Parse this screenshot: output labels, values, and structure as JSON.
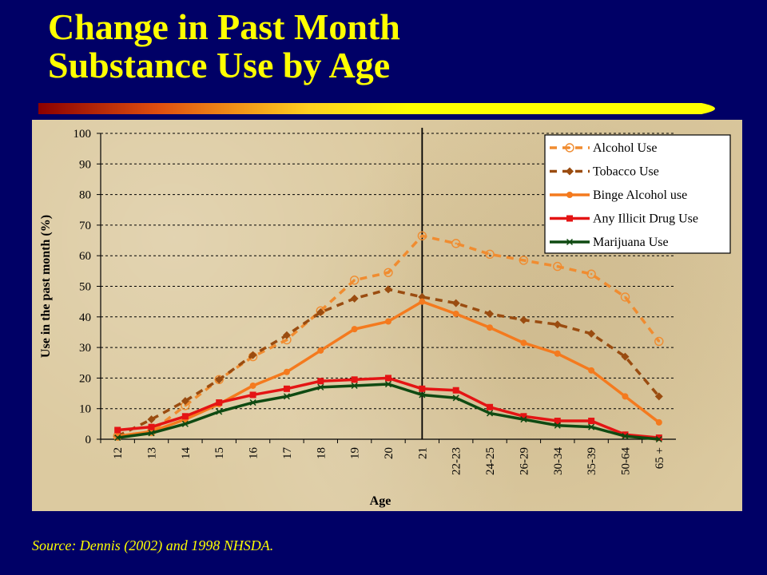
{
  "slide": {
    "title_line1": "Change in Past Month",
    "title_line2": "Substance Use by Age",
    "source": "Source: Dennis (2002) and 1998 NHSDA."
  },
  "colors": {
    "background": "#000066",
    "title": "#ffff00",
    "alcohol": "#f08c30",
    "tobacco": "#9a4c10",
    "binge": "#f47a1e",
    "illicit": "#e41414",
    "marijuana": "#0f4a12"
  },
  "chart_data": {
    "type": "line",
    "title": "",
    "xlabel": "Age",
    "ylabel": "Use in the past month (%)",
    "ylim": [
      0,
      100
    ],
    "yticks": [
      "0",
      "10",
      "20",
      "30",
      "40",
      "50",
      "60",
      "70",
      "80",
      "90",
      "100"
    ],
    "grid": "horizontal dashed",
    "legend_position": "top-right",
    "reference_line_category": "21",
    "categories": [
      "12",
      "13",
      "14",
      "15",
      "16",
      "17",
      "18",
      "19",
      "20",
      "21",
      "22-23",
      "24-25",
      "26-29",
      "30-34",
      "35-39",
      "50-64",
      "65 +"
    ],
    "series": [
      {
        "name": "Alcohol Use",
        "style": "dashed",
        "marker": "circle-open",
        "color_key": "alcohol",
        "values": [
          1,
          2.5,
          11,
          19.5,
          27,
          32.5,
          42,
          52,
          54.5,
          66.5,
          64,
          60.5,
          58.5,
          56.5,
          54,
          46.5,
          32
        ]
      },
      {
        "name": "Tobacco Use",
        "style": "dashed",
        "marker": "diamond",
        "color_key": "tobacco",
        "values": [
          1,
          6.5,
          12.5,
          19.5,
          27.5,
          34,
          41.5,
          46,
          49,
          46.5,
          44.5,
          41,
          39,
          37.5,
          34.5,
          27,
          14
        ]
      },
      {
        "name": "Binge Alcohol use",
        "style": "solid",
        "marker": "circle",
        "color_key": "binge",
        "values": [
          1,
          2.5,
          6.5,
          11.5,
          17.5,
          22,
          29,
          36,
          38.5,
          45,
          41,
          36.5,
          31.5,
          28,
          22.5,
          14,
          5.5
        ]
      },
      {
        "name": "Any Illicit Drug Use",
        "style": "solid",
        "marker": "square",
        "color_key": "illicit",
        "values": [
          3,
          4,
          7.5,
          12,
          14.5,
          16.5,
          19,
          19.5,
          20,
          16.5,
          16,
          10.5,
          7.5,
          6,
          6,
          1.5,
          0.5
        ]
      },
      {
        "name": "Marijuana Use",
        "style": "solid",
        "marker": "x",
        "color_key": "marijuana",
        "values": [
          0.5,
          2,
          5,
          9,
          12,
          14,
          17,
          17.5,
          18,
          14.5,
          13.5,
          8.5,
          6.5,
          4.5,
          4,
          1,
          0
        ]
      }
    ]
  }
}
